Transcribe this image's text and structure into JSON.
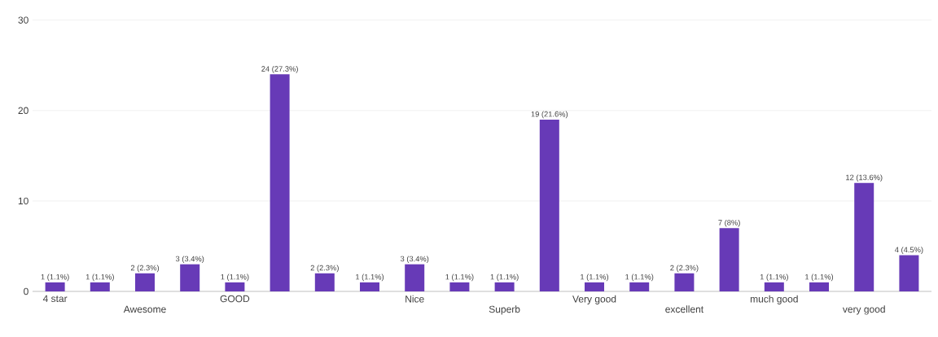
{
  "chart_data": {
    "type": "bar",
    "categories": [
      "4 star",
      null,
      "Awesome",
      null,
      "GOOD",
      null,
      null,
      null,
      "Nice",
      null,
      "Superb",
      null,
      "Very good",
      null,
      "excellent",
      null,
      "much good",
      null,
      "very good",
      null
    ],
    "values": [
      1,
      1,
      2,
      3,
      1,
      24,
      2,
      1,
      3,
      1,
      1,
      19,
      1,
      1,
      2,
      7,
      1,
      1,
      12,
      4
    ],
    "value_labels": [
      "1 (1.1%)",
      "1 (1.1%)",
      "2 (2.3%)",
      "3 (3.4%)",
      "1 (1.1%)",
      "24 (27.3%)",
      "2 (2.3%)",
      "1 (1.1%)",
      "3 (3.4%)",
      "1 (1.1%)",
      "1 (1.1%)",
      "19 (21.6%)",
      "1 (1.1%)",
      "1 (1.1%)",
      "2 (2.3%)",
      "7 (8%)",
      "1 (1.1%)",
      "1 (1.1%)",
      "12 (13.6%)",
      "4 (4.5%)"
    ],
    "color": "#673ab7",
    "ylim": [
      0,
      30
    ],
    "yticks": [
      0,
      10,
      20,
      30
    ],
    "grid": "y"
  }
}
